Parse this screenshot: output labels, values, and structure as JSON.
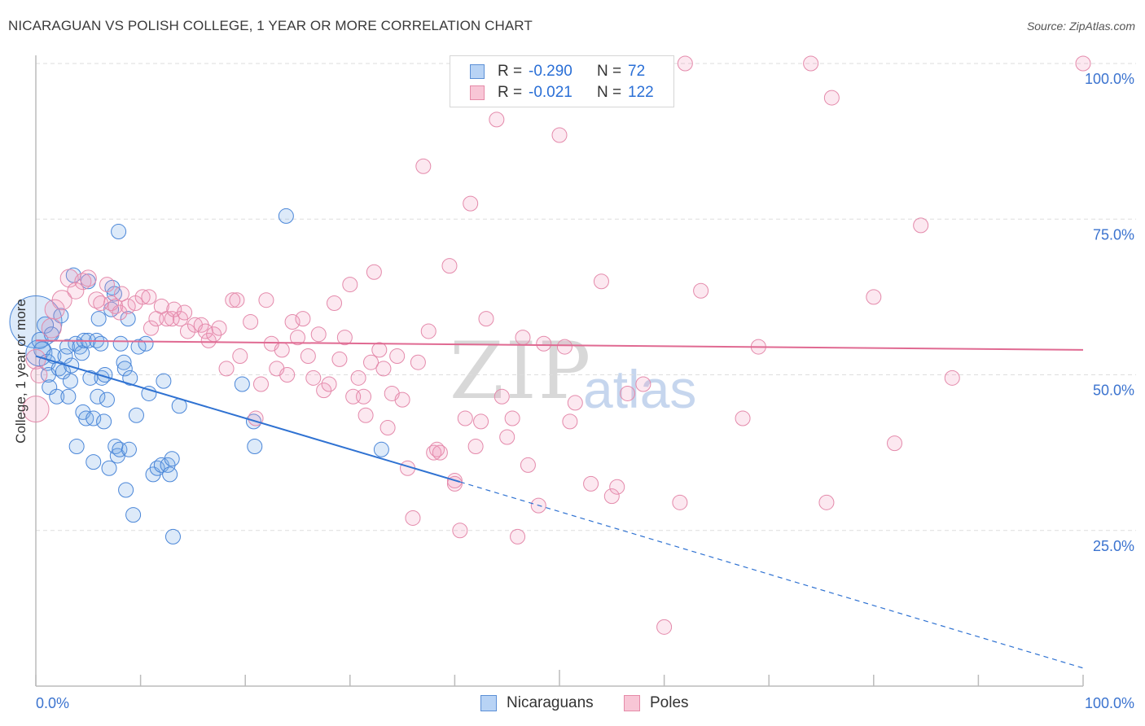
{
  "title": "NICARAGUAN VS POLISH COLLEGE, 1 YEAR OR MORE CORRELATION CHART",
  "source": "Source: ZipAtlas.com",
  "watermark": {
    "zip": "ZIP",
    "atlas": "atlas"
  },
  "legend": {
    "r_label": "R =",
    "n_label": "N =",
    "series": [
      {
        "name": "Nicaraguans",
        "r": "-0.290",
        "n": "72",
        "fill": "#b8d3f5",
        "stroke": "#5b8fd6"
      },
      {
        "name": "Poles",
        "r": "-0.021",
        "n": "122",
        "fill": "#f8c6d6",
        "stroke": "#e58aa8"
      }
    ]
  },
  "colors": {
    "blue_point_fill": "rgba(120,170,230,0.25)",
    "blue_point_stroke": "#4a86d8",
    "blue_line": "#2f72d2",
    "pink_point_fill": "rgba(240,150,185,0.22)",
    "pink_point_stroke": "#e48aab",
    "pink_line": "#e06a92",
    "grid": "#dddddd",
    "axis_text": "#3b73cf"
  },
  "chart_data": {
    "type": "scatter",
    "title": "NICARAGUAN VS POLISH COLLEGE, 1 YEAR OR MORE CORRELATION CHART",
    "xlabel": "",
    "ylabel": "College, 1 year or more",
    "xlim": [
      0,
      100
    ],
    "ylim": [
      0,
      100
    ],
    "x_tick_labels": [
      "0.0%",
      "100.0%"
    ],
    "y_ticks": [
      25,
      50,
      75,
      100
    ],
    "y_tick_labels": [
      "25.0%",
      "50.0%",
      "75.0%",
      "100.0%"
    ],
    "series": [
      {
        "name": "Nicaraguans",
        "trend": {
          "x0": 0,
          "y0": 53.0,
          "x1": 40.5,
          "y1": 32.8,
          "dash_to_x": 100,
          "dash_to_y": 2.9
        },
        "points": [
          {
            "x": 0.0,
            "y": 58.5,
            "r": 32
          },
          {
            "x": 0.3,
            "y": 53.5,
            "r": 16
          },
          {
            "x": 0.4,
            "y": 55.5,
            "r": 10
          },
          {
            "x": 0.6,
            "y": 54.0,
            "r": 10
          },
          {
            "x": 0.9,
            "y": 58.0,
            "r": 10
          },
          {
            "x": 1.1,
            "y": 52.0,
            "r": 10
          },
          {
            "x": 1.2,
            "y": 50.0,
            "r": 9
          },
          {
            "x": 1.3,
            "y": 48.0,
            "r": 9
          },
          {
            "x": 1.5,
            "y": 56.5,
            "r": 9
          },
          {
            "x": 1.7,
            "y": 53.0,
            "r": 9
          },
          {
            "x": 2.0,
            "y": 46.5,
            "r": 9
          },
          {
            "x": 2.2,
            "y": 51.0,
            "r": 9
          },
          {
            "x": 2.4,
            "y": 59.5,
            "r": 9
          },
          {
            "x": 2.6,
            "y": 50.5,
            "r": 9
          },
          {
            "x": 2.8,
            "y": 53.0,
            "r": 9
          },
          {
            "x": 3.0,
            "y": 54.5,
            "r": 9
          },
          {
            "x": 3.1,
            "y": 46.5,
            "r": 9
          },
          {
            "x": 3.3,
            "y": 49.0,
            "r": 9
          },
          {
            "x": 3.4,
            "y": 51.5,
            "r": 9
          },
          {
            "x": 3.6,
            "y": 66.0,
            "r": 9
          },
          {
            "x": 3.8,
            "y": 55.0,
            "r": 9
          },
          {
            "x": 3.9,
            "y": 38.5,
            "r": 9
          },
          {
            "x": 4.2,
            "y": 54.5,
            "r": 9
          },
          {
            "x": 4.4,
            "y": 53.5,
            "r": 9
          },
          {
            "x": 4.5,
            "y": 44.0,
            "r": 9
          },
          {
            "x": 4.6,
            "y": 55.5,
            "r": 9
          },
          {
            "x": 4.8,
            "y": 43.0,
            "r": 9
          },
          {
            "x": 5.0,
            "y": 55.5,
            "r": 9
          },
          {
            "x": 5.0,
            "y": 65.0,
            "r": 9
          },
          {
            "x": 5.2,
            "y": 49.5,
            "r": 9
          },
          {
            "x": 5.5,
            "y": 43.0,
            "r": 9
          },
          {
            "x": 5.5,
            "y": 36.0,
            "r": 9
          },
          {
            "x": 5.8,
            "y": 55.5,
            "r": 9
          },
          {
            "x": 5.9,
            "y": 46.5,
            "r": 9
          },
          {
            "x": 6.0,
            "y": 59.0,
            "r": 9
          },
          {
            "x": 6.2,
            "y": 55.0,
            "r": 9
          },
          {
            "x": 6.3,
            "y": 49.5,
            "r": 9
          },
          {
            "x": 6.5,
            "y": 42.5,
            "r": 9
          },
          {
            "x": 6.6,
            "y": 50.0,
            "r": 9
          },
          {
            "x": 6.8,
            "y": 46.0,
            "r": 9
          },
          {
            "x": 7.0,
            "y": 35.0,
            "r": 9
          },
          {
            "x": 7.2,
            "y": 60.5,
            "r": 9
          },
          {
            "x": 7.3,
            "y": 64.0,
            "r": 9
          },
          {
            "x": 7.5,
            "y": 63.0,
            "r": 9
          },
          {
            "x": 7.6,
            "y": 38.5,
            "r": 9
          },
          {
            "x": 7.8,
            "y": 37.0,
            "r": 9
          },
          {
            "x": 7.9,
            "y": 73.0,
            "r": 9
          },
          {
            "x": 8.0,
            "y": 38.0,
            "r": 9
          },
          {
            "x": 8.1,
            "y": 55.0,
            "r": 9
          },
          {
            "x": 8.4,
            "y": 52.0,
            "r": 9
          },
          {
            "x": 8.5,
            "y": 51.0,
            "r": 9
          },
          {
            "x": 8.6,
            "y": 31.5,
            "r": 9
          },
          {
            "x": 8.8,
            "y": 59.0,
            "r": 9
          },
          {
            "x": 8.9,
            "y": 38.0,
            "r": 9
          },
          {
            "x": 9.0,
            "y": 49.5,
            "r": 9
          },
          {
            "x": 9.3,
            "y": 27.5,
            "r": 9
          },
          {
            "x": 9.6,
            "y": 43.5,
            "r": 9
          },
          {
            "x": 9.8,
            "y": 54.5,
            "r": 9
          },
          {
            "x": 10.5,
            "y": 55.0,
            "r": 9
          },
          {
            "x": 10.8,
            "y": 47.0,
            "r": 9
          },
          {
            "x": 11.2,
            "y": 34.0,
            "r": 9
          },
          {
            "x": 11.6,
            "y": 35.0,
            "r": 9
          },
          {
            "x": 12.0,
            "y": 35.5,
            "r": 9
          },
          {
            "x": 12.2,
            "y": 49.0,
            "r": 9
          },
          {
            "x": 12.6,
            "y": 35.5,
            "r": 9
          },
          {
            "x": 12.8,
            "y": 34.0,
            "r": 9
          },
          {
            "x": 13.0,
            "y": 36.5,
            "r": 9
          },
          {
            "x": 13.1,
            "y": 24.0,
            "r": 9
          },
          {
            "x": 13.7,
            "y": 45.0,
            "r": 9
          },
          {
            "x": 19.7,
            "y": 48.5,
            "r": 9
          },
          {
            "x": 20.8,
            "y": 42.5,
            "r": 9
          },
          {
            "x": 20.9,
            "y": 38.5,
            "r": 9
          },
          {
            "x": 23.9,
            "y": 75.5,
            "r": 9
          },
          {
            "x": 33.0,
            "y": 38.0,
            "r": 9
          }
        ]
      },
      {
        "name": "Poles",
        "trend": {
          "x0": 0,
          "y0": 55.5,
          "x1": 100,
          "y1": 54.0
        },
        "points": [
          {
            "x": 0.0,
            "y": 44.5,
            "r": 16
          },
          {
            "x": 0.0,
            "y": 52.5,
            "r": 12
          },
          {
            "x": 0.3,
            "y": 50.0,
            "r": 10
          },
          {
            "x": 1.5,
            "y": 57.5,
            "r": 12
          },
          {
            "x": 1.8,
            "y": 60.5,
            "r": 12
          },
          {
            "x": 2.5,
            "y": 62.0,
            "r": 12
          },
          {
            "x": 3.2,
            "y": 65.5,
            "r": 11
          },
          {
            "x": 3.8,
            "y": 63.5,
            "r": 10
          },
          {
            "x": 4.5,
            "y": 65.0,
            "r": 10
          },
          {
            "x": 5.0,
            "y": 65.5,
            "r": 10
          },
          {
            "x": 5.8,
            "y": 62.0,
            "r": 10
          },
          {
            "x": 6.2,
            "y": 61.5,
            "r": 9
          },
          {
            "x": 6.8,
            "y": 64.5,
            "r": 9
          },
          {
            "x": 7.2,
            "y": 61.5,
            "r": 9
          },
          {
            "x": 7.6,
            "y": 61.0,
            "r": 9
          },
          {
            "x": 8.0,
            "y": 60.0,
            "r": 9
          },
          {
            "x": 8.2,
            "y": 63.0,
            "r": 9
          },
          {
            "x": 8.8,
            "y": 61.0,
            "r": 9
          },
          {
            "x": 9.5,
            "y": 61.5,
            "r": 9
          },
          {
            "x": 10.2,
            "y": 62.5,
            "r": 9
          },
          {
            "x": 10.8,
            "y": 62.5,
            "r": 9
          },
          {
            "x": 11.0,
            "y": 57.5,
            "r": 9
          },
          {
            "x": 11.5,
            "y": 59.0,
            "r": 9
          },
          {
            "x": 12.0,
            "y": 61.0,
            "r": 9
          },
          {
            "x": 12.5,
            "y": 59.0,
            "r": 9
          },
          {
            "x": 13.0,
            "y": 59.0,
            "r": 9
          },
          {
            "x": 13.2,
            "y": 60.5,
            "r": 9
          },
          {
            "x": 13.8,
            "y": 59.0,
            "r": 9
          },
          {
            "x": 14.2,
            "y": 60.0,
            "r": 9
          },
          {
            "x": 14.5,
            "y": 57.0,
            "r": 9
          },
          {
            "x": 15.2,
            "y": 58.0,
            "r": 9
          },
          {
            "x": 15.8,
            "y": 58.0,
            "r": 9
          },
          {
            "x": 16.2,
            "y": 57.0,
            "r": 9
          },
          {
            "x": 16.5,
            "y": 55.5,
            "r": 9
          },
          {
            "x": 17.0,
            "y": 56.5,
            "r": 9
          },
          {
            "x": 17.5,
            "y": 57.5,
            "r": 9
          },
          {
            "x": 18.2,
            "y": 51.0,
            "r": 9
          },
          {
            "x": 18.8,
            "y": 62.0,
            "r": 9
          },
          {
            "x": 19.2,
            "y": 62.0,
            "r": 9
          },
          {
            "x": 19.5,
            "y": 53.0,
            "r": 9
          },
          {
            "x": 20.5,
            "y": 58.5,
            "r": 9
          },
          {
            "x": 21.0,
            "y": 43.0,
            "r": 9
          },
          {
            "x": 21.5,
            "y": 48.5,
            "r": 9
          },
          {
            "x": 22.0,
            "y": 62.0,
            "r": 9
          },
          {
            "x": 22.5,
            "y": 55.0,
            "r": 9
          },
          {
            "x": 23.0,
            "y": 51.0,
            "r": 9
          },
          {
            "x": 23.5,
            "y": 54.0,
            "r": 9
          },
          {
            "x": 24.0,
            "y": 50.0,
            "r": 9
          },
          {
            "x": 24.5,
            "y": 58.5,
            "r": 9
          },
          {
            "x": 25.0,
            "y": 56.0,
            "r": 9
          },
          {
            "x": 25.5,
            "y": 59.0,
            "r": 9
          },
          {
            "x": 26.0,
            "y": 53.0,
            "r": 9
          },
          {
            "x": 26.5,
            "y": 49.5,
            "r": 9
          },
          {
            "x": 27.0,
            "y": 56.5,
            "r": 9
          },
          {
            "x": 27.5,
            "y": 47.5,
            "r": 9
          },
          {
            "x": 28.0,
            "y": 48.5,
            "r": 9
          },
          {
            "x": 28.5,
            "y": 61.5,
            "r": 9
          },
          {
            "x": 29.0,
            "y": 52.5,
            "r": 9
          },
          {
            "x": 29.5,
            "y": 56.0,
            "r": 9
          },
          {
            "x": 30.0,
            "y": 64.5,
            "r": 9
          },
          {
            "x": 30.3,
            "y": 46.5,
            "r": 9
          },
          {
            "x": 30.8,
            "y": 49.5,
            "r": 9
          },
          {
            "x": 31.3,
            "y": 46.5,
            "r": 9
          },
          {
            "x": 31.5,
            "y": 43.5,
            "r": 9
          },
          {
            "x": 32.0,
            "y": 52.0,
            "r": 9
          },
          {
            "x": 32.3,
            "y": 66.5,
            "r": 9
          },
          {
            "x": 32.8,
            "y": 54.0,
            "r": 9
          },
          {
            "x": 33.2,
            "y": 51.0,
            "r": 9
          },
          {
            "x": 33.6,
            "y": 41.5,
            "r": 9
          },
          {
            "x": 34.0,
            "y": 47.0,
            "r": 9
          },
          {
            "x": 34.5,
            "y": 53.0,
            "r": 9
          },
          {
            "x": 35.0,
            "y": 46.0,
            "r": 9
          },
          {
            "x": 35.5,
            "y": 35.0,
            "r": 9
          },
          {
            "x": 36.0,
            "y": 27.0,
            "r": 9
          },
          {
            "x": 36.5,
            "y": 52.0,
            "r": 9
          },
          {
            "x": 37.0,
            "y": 83.5,
            "r": 9
          },
          {
            "x": 37.5,
            "y": 57.0,
            "r": 9
          },
          {
            "x": 38.0,
            "y": 37.5,
            "r": 9
          },
          {
            "x": 38.3,
            "y": 38.0,
            "r": 9
          },
          {
            "x": 38.6,
            "y": 37.5,
            "r": 9
          },
          {
            "x": 39.5,
            "y": 67.5,
            "r": 9
          },
          {
            "x": 40.0,
            "y": 33.0,
            "r": 9
          },
          {
            "x": 40.5,
            "y": 25.0,
            "r": 9
          },
          {
            "x": 41.0,
            "y": 43.0,
            "r": 9
          },
          {
            "x": 41.5,
            "y": 77.5,
            "r": 9
          },
          {
            "x": 42.0,
            "y": 38.5,
            "r": 9
          },
          {
            "x": 42.5,
            "y": 42.5,
            "r": 9
          },
          {
            "x": 43.0,
            "y": 59.0,
            "r": 9
          },
          {
            "x": 44.0,
            "y": 91.0,
            "r": 9
          },
          {
            "x": 44.5,
            "y": 46.5,
            "r": 9
          },
          {
            "x": 45.0,
            "y": 40.0,
            "r": 9
          },
          {
            "x": 45.5,
            "y": 43.0,
            "r": 9
          },
          {
            "x": 46.0,
            "y": 24.0,
            "r": 9
          },
          {
            "x": 46.5,
            "y": 56.0,
            "r": 9
          },
          {
            "x": 47.0,
            "y": 35.5,
            "r": 9
          },
          {
            "x": 48.0,
            "y": 29.0,
            "r": 9
          },
          {
            "x": 48.5,
            "y": 55.0,
            "r": 9
          },
          {
            "x": 50.0,
            "y": 88.5,
            "r": 9
          },
          {
            "x": 50.5,
            "y": 54.5,
            "r": 9
          },
          {
            "x": 51.0,
            "y": 42.5,
            "r": 9
          },
          {
            "x": 51.5,
            "y": 45.5,
            "r": 9
          },
          {
            "x": 53.0,
            "y": 32.5,
            "r": 9
          },
          {
            "x": 54.0,
            "y": 65.0,
            "r": 9
          },
          {
            "x": 55.0,
            "y": 30.5,
            "r": 9
          },
          {
            "x": 55.5,
            "y": 32.0,
            "r": 9
          },
          {
            "x": 56.5,
            "y": 47.0,
            "r": 9
          },
          {
            "x": 58.0,
            "y": 48.5,
            "r": 9
          },
          {
            "x": 60.0,
            "y": 9.5,
            "r": 9
          },
          {
            "x": 61.5,
            "y": 29.5,
            "r": 9
          },
          {
            "x": 62.0,
            "y": 100.0,
            "r": 9
          },
          {
            "x": 63.5,
            "y": 63.5,
            "r": 9
          },
          {
            "x": 67.5,
            "y": 43.0,
            "r": 9
          },
          {
            "x": 69.0,
            "y": 54.5,
            "r": 9
          },
          {
            "x": 74.0,
            "y": 100.0,
            "r": 9
          },
          {
            "x": 75.5,
            "y": 29.5,
            "r": 9
          },
          {
            "x": 76.0,
            "y": 94.5,
            "r": 9
          },
          {
            "x": 80.0,
            "y": 62.5,
            "r": 9
          },
          {
            "x": 82.0,
            "y": 39.0,
            "r": 9
          },
          {
            "x": 84.5,
            "y": 74.0,
            "r": 9
          },
          {
            "x": 87.5,
            "y": 49.5,
            "r": 9
          },
          {
            "x": 100.0,
            "y": 100.0,
            "r": 9
          },
          {
            "x": 40.0,
            "y": 32.5,
            "r": 9
          }
        ]
      }
    ]
  }
}
